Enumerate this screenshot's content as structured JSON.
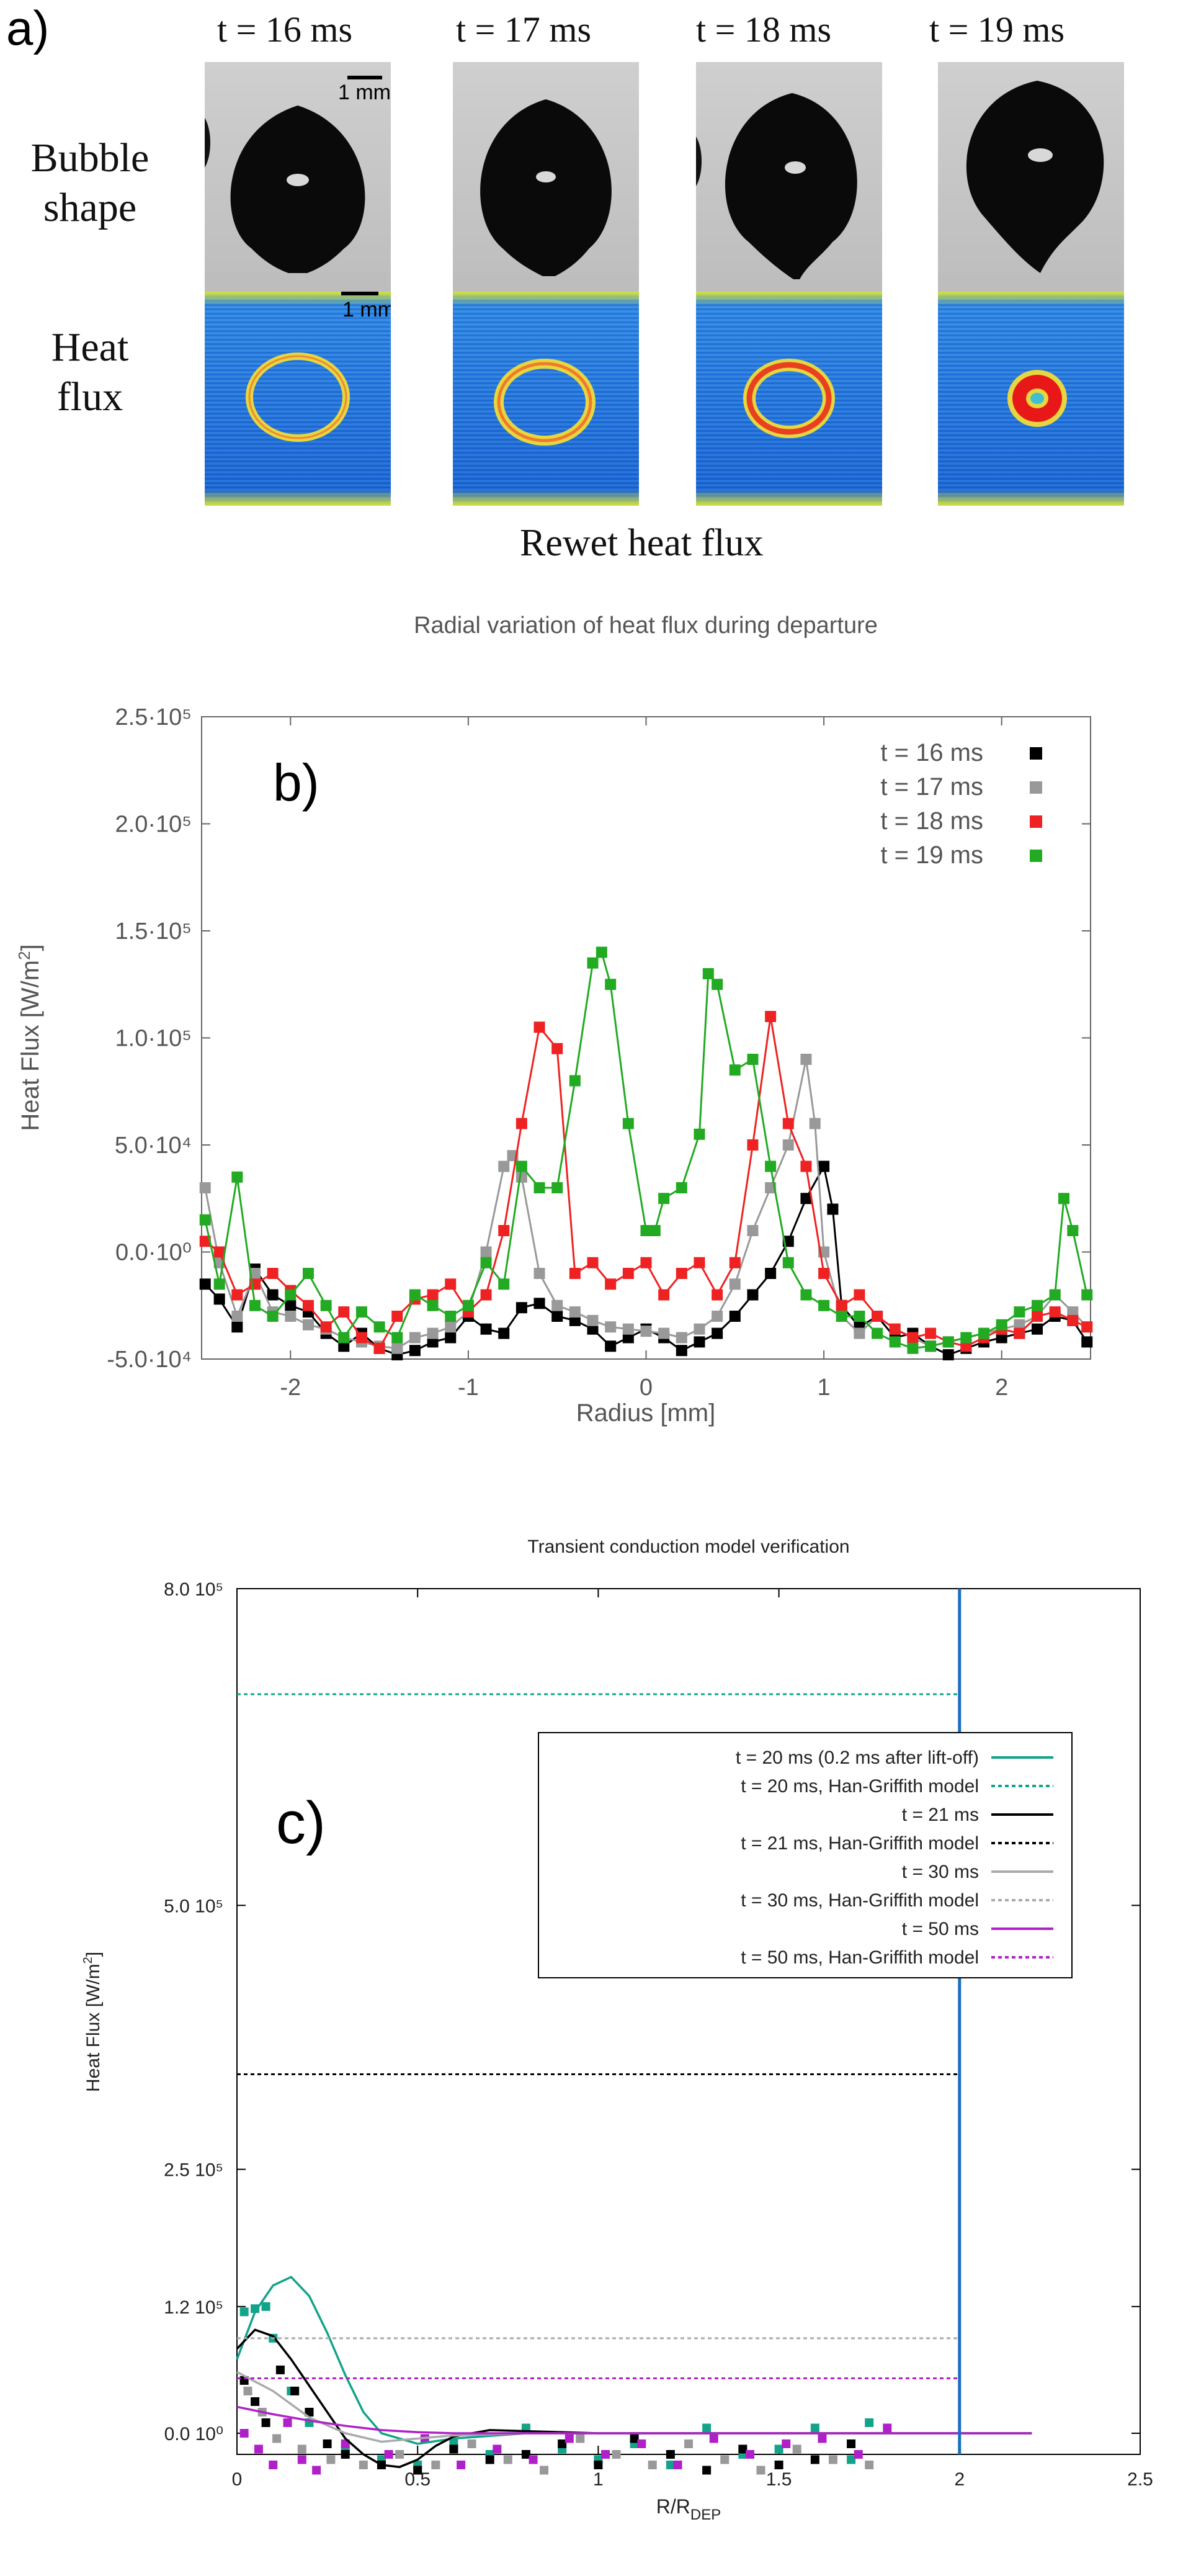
{
  "panel_a": {
    "label": "a)",
    "time_labels": [
      "t = 16 ms",
      "t = 17 ms",
      "t = 18 ms",
      "t = 19 ms"
    ],
    "row_labels": {
      "bubble": "Bubble\nshape",
      "heat": "Heat\nflux"
    },
    "scale_bar_bubble": "1 mm",
    "scale_bar_heat": "1 mm",
    "footer": "Rewet heat flux"
  },
  "chart_data": [
    {
      "id": "b",
      "type": "line",
      "panel_label": "b)",
      "title": "Radial variation of heat flux during departure",
      "xlabel": "Radius [mm]",
      "ylabel": "Heat Flux [W/m",
      "ylabel_sup": "2",
      "ylabel_close": "]",
      "xlim": [
        -2.5,
        2.5
      ],
      "ylim": [
        -50000,
        250000
      ],
      "xticks": [
        -2,
        -1,
        0,
        1,
        2
      ],
      "xtick_labels": [
        "-2",
        "-1",
        "0",
        "1",
        "2"
      ],
      "yticks": [
        -50000,
        0,
        50000,
        100000,
        150000,
        200000,
        250000
      ],
      "ytick_labels": [
        "-5.0·10⁴",
        "0.0·10⁰",
        "5.0·10⁴",
        "1.0·10⁵",
        "1.5·10⁵",
        "2.0·10⁵",
        "2.5·10⁵"
      ],
      "legend_position": "top-right",
      "series": [
        {
          "name": "t = 16 ms",
          "color": "#000000",
          "x": [
            -2.48,
            -2.4,
            -2.3,
            -2.2,
            -2.1,
            -2.0,
            -1.9,
            -1.8,
            -1.7,
            -1.6,
            -1.5,
            -1.4,
            -1.3,
            -1.2,
            -1.1,
            -1.0,
            -0.9,
            -0.8,
            -0.7,
            -0.6,
            -0.5,
            -0.4,
            -0.3,
            -0.2,
            -0.1,
            0.0,
            0.1,
            0.2,
            0.3,
            0.4,
            0.5,
            0.6,
            0.7,
            0.8,
            0.9,
            1.0,
            1.05,
            1.1,
            1.2,
            1.3,
            1.4,
            1.5,
            1.6,
            1.7,
            1.8,
            1.9,
            2.0,
            2.1,
            2.2,
            2.3,
            2.4,
            2.48
          ],
          "y": [
            -15000,
            -22000,
            -35000,
            -8000,
            -20000,
            -25000,
            -28000,
            -38000,
            -44000,
            -38000,
            -45000,
            -48000,
            -46000,
            -42000,
            -40000,
            -30000,
            -36000,
            -38000,
            -26000,
            -24000,
            -30000,
            -32000,
            -36000,
            -44000,
            -40000,
            -36000,
            -40000,
            -46000,
            -42000,
            -38000,
            -30000,
            -20000,
            -10000,
            5000,
            25000,
            40000,
            20000,
            -25000,
            -35000,
            -30000,
            -40000,
            -38000,
            -44000,
            -48000,
            -45000,
            -42000,
            -40000,
            -38000,
            -36000,
            -30000,
            -32000,
            -42000
          ]
        },
        {
          "name": "t = 17 ms",
          "color": "#999999",
          "x": [
            -2.48,
            -2.4,
            -2.3,
            -2.2,
            -2.1,
            -2.0,
            -1.9,
            -1.8,
            -1.7,
            -1.6,
            -1.5,
            -1.4,
            -1.3,
            -1.2,
            -1.1,
            -1.0,
            -0.9,
            -0.8,
            -0.75,
            -0.7,
            -0.6,
            -0.5,
            -0.4,
            -0.3,
            -0.2,
            -0.1,
            0.0,
            0.1,
            0.2,
            0.3,
            0.4,
            0.5,
            0.6,
            0.7,
            0.8,
            0.9,
            0.95,
            1.0,
            1.1,
            1.2,
            1.3,
            1.4,
            1.5,
            1.6,
            1.7,
            1.8,
            1.9,
            2.0,
            2.1,
            2.2,
            2.3,
            2.4,
            2.48
          ],
          "y": [
            30000,
            -5000,
            -30000,
            -10000,
            -28000,
            -30000,
            -34000,
            -36000,
            -40000,
            -42000,
            -44000,
            -45000,
            -40000,
            -38000,
            -35000,
            -28000,
            0,
            40000,
            45000,
            35000,
            -10000,
            -25000,
            -28000,
            -32000,
            -35000,
            -36000,
            -37000,
            -38000,
            -40000,
            -36000,
            -30000,
            -15000,
            10000,
            30000,
            50000,
            90000,
            60000,
            0,
            -30000,
            -38000,
            -30000,
            -36000,
            -40000,
            -44000,
            -42000,
            -40000,
            -38000,
            -36000,
            -34000,
            -30000,
            -20000,
            -28000,
            -35000
          ]
        },
        {
          "name": "t = 18 ms",
          "color": "#ee2222",
          "x": [
            -2.48,
            -2.4,
            -2.3,
            -2.2,
            -2.1,
            -2.0,
            -1.9,
            -1.8,
            -1.7,
            -1.6,
            -1.5,
            -1.4,
            -1.3,
            -1.2,
            -1.1,
            -1.0,
            -0.9,
            -0.8,
            -0.7,
            -0.6,
            -0.5,
            -0.4,
            -0.3,
            -0.2,
            -0.1,
            0.0,
            0.1,
            0.2,
            0.3,
            0.4,
            0.5,
            0.6,
            0.7,
            0.8,
            0.9,
            1.0,
            1.1,
            1.2,
            1.3,
            1.4,
            1.5,
            1.6,
            1.7,
            1.8,
            1.9,
            2.0,
            2.1,
            2.2,
            2.3,
            2.4,
            2.48
          ],
          "y": [
            5000,
            0,
            -20000,
            -15000,
            -10000,
            -18000,
            -25000,
            -35000,
            -28000,
            -40000,
            -45000,
            -30000,
            -22000,
            -20000,
            -15000,
            -28000,
            -20000,
            10000,
            60000,
            105000,
            95000,
            -10000,
            -5000,
            -15000,
            -10000,
            -5000,
            -20000,
            -10000,
            -5000,
            -20000,
            -5000,
            50000,
            110000,
            60000,
            40000,
            -10000,
            -25000,
            -20000,
            -30000,
            -36000,
            -40000,
            -38000,
            -42000,
            -44000,
            -40000,
            -36000,
            -38000,
            -30000,
            -28000,
            -32000,
            -35000
          ]
        },
        {
          "name": "t = 19 ms",
          "color": "#22aa22",
          "x": [
            -2.48,
            -2.4,
            -2.3,
            -2.2,
            -2.1,
            -2.0,
            -1.9,
            -1.8,
            -1.7,
            -1.6,
            -1.5,
            -1.4,
            -1.3,
            -1.2,
            -1.1,
            -1.0,
            -0.9,
            -0.8,
            -0.7,
            -0.6,
            -0.5,
            -0.4,
            -0.3,
            -0.25,
            -0.2,
            -0.1,
            0.0,
            0.05,
            0.1,
            0.2,
            0.3,
            0.35,
            0.4,
            0.5,
            0.6,
            0.7,
            0.8,
            0.9,
            1.0,
            1.1,
            1.2,
            1.3,
            1.4,
            1.5,
            1.6,
            1.7,
            1.8,
            1.9,
            2.0,
            2.1,
            2.2,
            2.3,
            2.35,
            2.4,
            2.48
          ],
          "y": [
            15000,
            -15000,
            35000,
            -25000,
            -30000,
            -20000,
            -10000,
            -25000,
            -40000,
            -28000,
            -35000,
            -40000,
            -20000,
            -25000,
            -30000,
            -25000,
            -5000,
            -15000,
            40000,
            30000,
            30000,
            80000,
            135000,
            140000,
            125000,
            60000,
            10000,
            10000,
            25000,
            30000,
            55000,
            130000,
            125000,
            85000,
            90000,
            40000,
            -5000,
            -20000,
            -25000,
            -30000,
            -30000,
            -38000,
            -42000,
            -45000,
            -44000,
            -42000,
            -40000,
            -38000,
            -34000,
            -28000,
            -25000,
            -20000,
            25000,
            10000,
            -20000
          ]
        }
      ]
    },
    {
      "id": "c",
      "type": "line",
      "panel_label": "c)",
      "title": "Transient conduction model verification",
      "xlabel": "R/R",
      "xlabel_sub": "DEP",
      "ylabel": "Heat Flux [W/m",
      "ylabel_sup": "2",
      "ylabel_close": "]",
      "xlim": [
        0,
        2.5
      ],
      "ylim": [
        -20000,
        800000
      ],
      "xticks": [
        0,
        0.5,
        1,
        1.5,
        2,
        2.5
      ],
      "xtick_labels": [
        "0",
        "0.5",
        "1",
        "1.5",
        "2",
        "2.5"
      ],
      "yticks": [
        0,
        120000,
        250000,
        500000,
        800000
      ],
      "ytick_labels": [
        "0.0 10⁰",
        "1.2 10⁵",
        "2.5 10⁵",
        "5.0 10⁵",
        "8.0 10⁵"
      ],
      "vertical_line": {
        "x": 2.0,
        "color": "#1b6fc0"
      },
      "legend_position": "top-right",
      "series": [
        {
          "name": "t = 20 ms (0.2 ms after lift-off)",
          "color": "#12a38a",
          "dash": "solid",
          "x": [
            0,
            0.05,
            0.1,
            0.15,
            0.2,
            0.25,
            0.3,
            0.35,
            0.4,
            0.5,
            0.6,
            0.8,
            1.0,
            1.5,
            2.0,
            2.2
          ],
          "y": [
            70000,
            115000,
            140000,
            148000,
            130000,
            95000,
            55000,
            20000,
            0,
            -10000,
            -5000,
            0,
            0,
            0,
            0,
            0
          ]
        },
        {
          "name": "t = 20 ms, Han-Griffith model",
          "color": "#12a38a",
          "dash": "dotted",
          "x": [
            0,
            2.0
          ],
          "y": [
            700000,
            700000
          ]
        },
        {
          "name": "t = 21 ms",
          "color": "#000000",
          "dash": "solid",
          "x": [
            0,
            0.05,
            0.1,
            0.15,
            0.2,
            0.25,
            0.3,
            0.35,
            0.4,
            0.45,
            0.5,
            0.55,
            0.6,
            0.7,
            0.8,
            1.0,
            1.5,
            2.0,
            2.2
          ],
          "y": [
            80000,
            98000,
            92000,
            70000,
            45000,
            20000,
            -5000,
            -20000,
            -30000,
            -32000,
            -25000,
            -12000,
            -3000,
            3000,
            2000,
            0,
            0,
            0,
            0
          ]
        },
        {
          "name": "t = 21 ms, Han-Griffith model",
          "color": "#000000",
          "dash": "dotted",
          "x": [
            0,
            2.0
          ],
          "y": [
            340000,
            340000
          ]
        },
        {
          "name": "t = 30 ms",
          "color": "#aaaaaa",
          "dash": "solid",
          "x": [
            0,
            0.1,
            0.2,
            0.3,
            0.4,
            0.5,
            0.6,
            0.8,
            1.0,
            1.5,
            2.0,
            2.2
          ],
          "y": [
            58000,
            40000,
            15000,
            0,
            -8000,
            -5000,
            -2000,
            0,
            0,
            0,
            0,
            0
          ]
        },
        {
          "name": "t = 30 ms, Han-Griffith model",
          "color": "#aaaaaa",
          "dash": "dotted",
          "x": [
            0,
            2.0
          ],
          "y": [
            90000,
            90000
          ]
        },
        {
          "name": "t = 50 ms",
          "color": "#b020c8",
          "dash": "solid",
          "x": [
            0,
            0.1,
            0.2,
            0.3,
            0.4,
            0.5,
            0.6,
            0.8,
            1.0,
            1.5,
            2.0,
            2.2
          ],
          "y": [
            25000,
            18000,
            12000,
            7000,
            3000,
            1000,
            0,
            0,
            0,
            0,
            0,
            0
          ]
        },
        {
          "name": "t = 50 ms, Han-Griffith model",
          "color": "#b020c8",
          "dash": "dotted",
          "x": [
            0,
            2.0
          ],
          "y": [
            52000,
            52000
          ]
        }
      ],
      "scatter_points": [
        {
          "color": "#12a38a",
          "x": [
            0.02,
            0.05,
            0.08,
            0.1,
            0.15,
            0.2,
            0.3,
            0.4,
            0.5,
            0.6,
            0.7,
            0.8,
            0.9,
            1.0,
            1.1,
            1.2,
            1.3,
            1.4,
            1.5,
            1.6,
            1.7,
            1.75
          ],
          "y": [
            115000,
            118000,
            120000,
            90000,
            40000,
            10000,
            -15000,
            -25000,
            -30000,
            -10000,
            -20000,
            5000,
            -15000,
            -25000,
            -10000,
            -30000,
            5000,
            -20000,
            -15000,
            5000,
            -25000,
            10000
          ]
        },
        {
          "color": "#000000",
          "x": [
            0.02,
            0.05,
            0.08,
            0.12,
            0.16,
            0.2,
            0.25,
            0.3,
            0.4,
            0.5,
            0.6,
            0.7,
            0.8,
            0.9,
            1.0,
            1.1,
            1.2,
            1.3,
            1.4,
            1.5,
            1.6,
            1.7
          ],
          "y": [
            50000,
            30000,
            10000,
            60000,
            40000,
            20000,
            -10000,
            -20000,
            -30000,
            -35000,
            -15000,
            -25000,
            -20000,
            -10000,
            -30000,
            -5000,
            -20000,
            -35000,
            -15000,
            -30000,
            -25000,
            -10000
          ]
        },
        {
          "color": "#999999",
          "x": [
            0.03,
            0.07,
            0.11,
            0.18,
            0.26,
            0.35,
            0.45,
            0.55,
            0.65,
            0.75,
            0.85,
            0.95,
            1.05,
            1.15,
            1.25,
            1.35,
            1.45,
            1.55,
            1.65,
            1.75
          ],
          "y": [
            40000,
            20000,
            -5000,
            -15000,
            -25000,
            -30000,
            -20000,
            -30000,
            -10000,
            -25000,
            -35000,
            -5000,
            -20000,
            -30000,
            -10000,
            -25000,
            -35000,
            -15000,
            -25000,
            -30000
          ]
        },
        {
          "color": "#b020c8",
          "x": [
            0.02,
            0.06,
            0.1,
            0.14,
            0.18,
            0.22,
            0.3,
            0.42,
            0.52,
            0.62,
            0.72,
            0.82,
            0.92,
            1.02,
            1.12,
            1.22,
            1.32,
            1.42,
            1.52,
            1.62,
            1.72,
            1.8
          ],
          "y": [
            0,
            -15000,
            -30000,
            10000,
            -25000,
            -35000,
            -10000,
            -20000,
            -5000,
            -30000,
            -15000,
            -25000,
            -5000,
            -20000,
            -10000,
            -30000,
            -5000,
            -20000,
            -10000,
            -5000,
            -20000,
            5000
          ]
        }
      ]
    }
  ]
}
